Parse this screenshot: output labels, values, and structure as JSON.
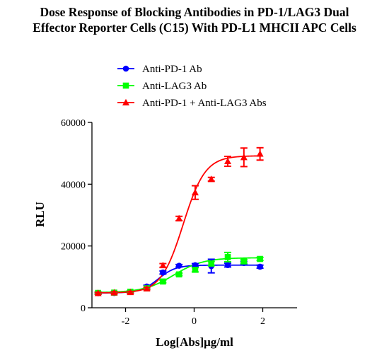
{
  "chart_data": {
    "type": "scatter",
    "title_line1": "Dose Response of Blocking Antibodies in PD-1/LAG3 Dual",
    "title_line2": "Effector Reporter Cells (C15) With PD-L1 MHCII APC Cells",
    "xlabel": "Log[Abs]μg/ml",
    "ylabel": "RLU",
    "xlim": [
      -3.0,
      3.0
    ],
    "ylim": [
      0,
      60000
    ],
    "x_ticks": [
      -2,
      0,
      2
    ],
    "y_ticks": [
      0,
      20000,
      40000,
      60000
    ],
    "x_tick_labels": [
      "-2",
      "0",
      "2"
    ],
    "y_tick_labels": [
      "0",
      "20000",
      "40000",
      "60000"
    ],
    "legend_position": "top",
    "series": [
      {
        "name": "Anti-PD-1 Ab",
        "color": "#0000ff",
        "marker": "circle",
        "x": [
          -2.8,
          -2.33,
          -1.86,
          -1.38,
          -0.91,
          -0.44,
          0.03,
          0.5,
          0.98,
          1.45,
          1.92
        ],
        "y": [
          4700,
          4800,
          5100,
          6900,
          11400,
          13600,
          13800,
          13500,
          13800,
          14500,
          13300
        ],
        "err": [
          300,
          300,
          300,
          400,
          500,
          400,
          500,
          2200,
          600,
          500,
          500
        ],
        "fit": {
          "bottom": 4800,
          "top": 13800,
          "logEC50": -1.05,
          "hill": 1.7
        }
      },
      {
        "name": "Anti-LAG3 Ab",
        "color": "#00ff00",
        "marker": "square",
        "x": [
          -2.8,
          -2.33,
          -1.86,
          -1.38,
          -0.91,
          -0.44,
          0.03,
          0.5,
          0.98,
          1.45,
          1.92
        ],
        "y": [
          4800,
          4900,
          5200,
          6300,
          8500,
          10800,
          12300,
          14300,
          16400,
          15000,
          15800
        ],
        "err": [
          300,
          300,
          300,
          300,
          400,
          400,
          700,
          700,
          1500,
          600,
          500
        ],
        "fit": {
          "bottom": 4900,
          "top": 16200,
          "logEC50": -0.6,
          "hill": 1.0
        }
      },
      {
        "name": "Anti-PD-1 + Anti-LAG3 Abs",
        "color": "#ff0000",
        "marker": "triangle",
        "x": [
          -2.8,
          -2.33,
          -1.86,
          -1.38,
          -0.91,
          -0.44,
          0.03,
          0.5,
          0.98,
          1.45,
          1.92
        ],
        "y": [
          4700,
          4900,
          5000,
          6200,
          13700,
          28900,
          37300,
          41600,
          47400,
          48700,
          49800
        ],
        "err": [
          300,
          300,
          300,
          400,
          600,
          700,
          2200,
          600,
          1600,
          3000,
          2000
        ],
        "fit": {
          "bottom": 4800,
          "top": 49200,
          "logEC50": -0.32,
          "hill": 1.35
        }
      }
    ]
  }
}
